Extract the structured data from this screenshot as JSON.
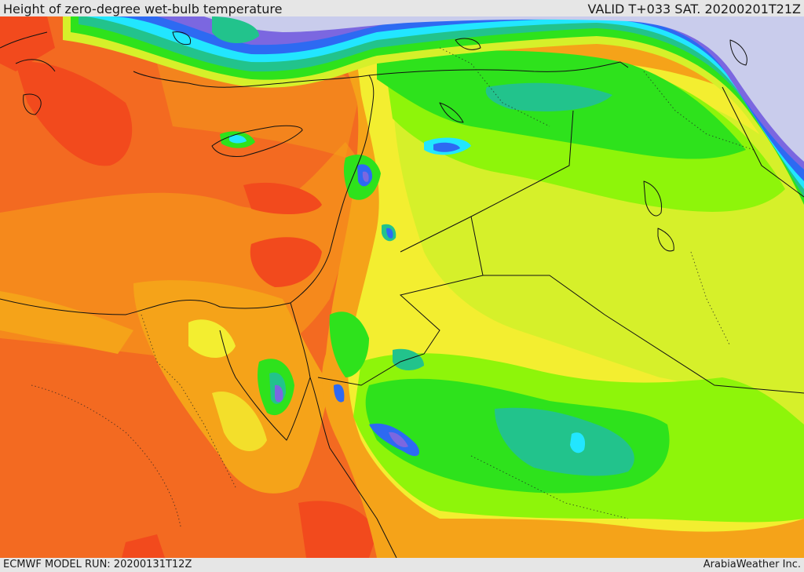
{
  "header": {
    "title": "Height of zero-degree wet-bulb temperature",
    "valid": "VALID T+033 SAT. 20200201T21Z"
  },
  "footer": {
    "model_run": "ECMWF MODEL RUN: 20200131T12Z",
    "credit": "ArabiaWeather Inc."
  },
  "colors": {
    "sea_red_orange": "#f36a21",
    "deep_red": "#f24a1d",
    "orange": "#f5a319",
    "yellow": "#f3ee30",
    "yellow_green": "#d6f02a",
    "light_green": "#8ef50a",
    "green": "#2ee21c",
    "teal": "#22c38c",
    "cyan": "#22e6ff",
    "blue": "#2d6af2",
    "violet": "#7b67e0",
    "lavender": "#c9ccec",
    "border": "#111111"
  }
}
